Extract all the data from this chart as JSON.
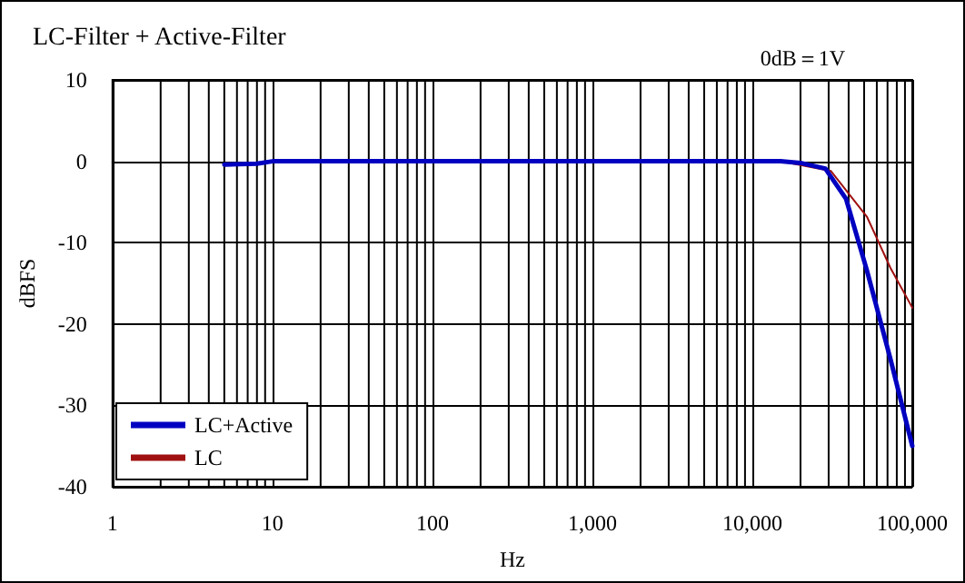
{
  "chart_data": {
    "type": "line",
    "title": "LC-Filter + Active-Filter",
    "xlabel": "Hz",
    "ylabel": "dBFS",
    "annotations": [
      "0dB＝1V"
    ],
    "log": "x",
    "grid": true,
    "legend": "bottom left",
    "marker": "none",
    "line_style": "solid",
    "xlim": [
      1,
      100000
    ],
    "xticks": [
      1,
      10,
      100,
      {
        "value": 1000,
        "label": "1,000"
      },
      {
        "value": 10000,
        "label": "10,000"
      },
      {
        "value": 100000,
        "label": "100,000"
      }
    ],
    "ylim": [
      -40,
      10
    ],
    "yticks": [
      -40,
      -30,
      -20,
      -10,
      0,
      10
    ],
    "series": [
      {
        "name": "LC+Active",
        "color": "#0000c0",
        "x": [
          5,
          8,
          10,
          15000,
          20000,
          28600,
          38500,
          52000,
          73000,
          100000
        ],
        "values": [
          -0.4,
          -0.3,
          0,
          0,
          -0.2,
          -0.9,
          -4.6,
          -13.4,
          -24.3,
          -35
        ]
      },
      {
        "name": "LC",
        "color": "#a01010",
        "x": [
          15000,
          31000,
          52000,
          73000,
          100000
        ],
        "values": [
          0,
          -1.2,
          -6.8,
          -13.1,
          -18
        ]
      }
    ]
  }
}
